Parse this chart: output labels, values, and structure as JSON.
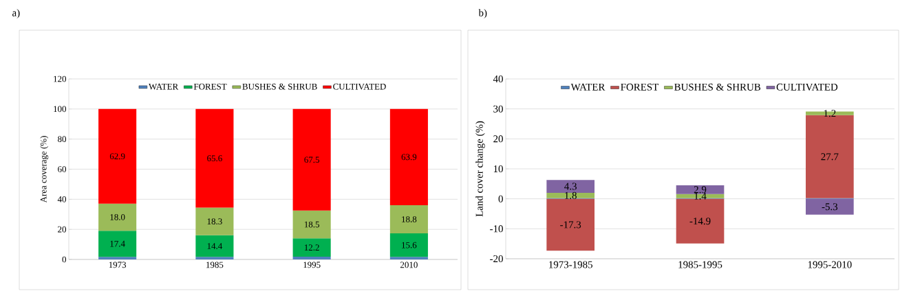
{
  "chart_data": [
    {
      "type": "bar",
      "stacked": true,
      "title": "a)",
      "ylabel": "Area coverage (%)",
      "categories": [
        "1973",
        "1985",
        "1995",
        "2010"
      ],
      "ylim": [
        0,
        120
      ],
      "yticks": [
        0,
        20,
        40,
        60,
        80,
        100,
        120
      ],
      "grid": "y",
      "legend": "top",
      "series": [
        {
          "name": "WATER",
          "color": "#4f81bd",
          "values": [
            1.7,
            1.7,
            1.8,
            1.7
          ],
          "value_labels": [
            null,
            null,
            null,
            null
          ]
        },
        {
          "name": "FOREST",
          "color": "#00b050",
          "values": [
            17.4,
            14.4,
            12.2,
            15.6
          ],
          "value_labels": [
            "17.4",
            "14.4",
            "12.2",
            "15.6"
          ]
        },
        {
          "name": "BUSHES & SHRUB",
          "color": "#9bbb59",
          "values": [
            18.0,
            18.3,
            18.5,
            18.8
          ],
          "value_labels": [
            "18.0",
            "18.3",
            "18.5",
            "18.8"
          ]
        },
        {
          "name": "CULTIVATED",
          "color": "#ff0000",
          "values": [
            62.9,
            65.6,
            67.5,
            63.9
          ],
          "value_labels": [
            "62.9",
            "65.6",
            "67.5",
            "63.9"
          ]
        }
      ]
    },
    {
      "type": "bar",
      "stacked": true,
      "title": "b)",
      "ylabel": "Land cover change (%)",
      "categories": [
        "1973-1985",
        "1985-1995",
        "1995-2010"
      ],
      "ylim": [
        -20,
        40
      ],
      "yticks": [
        -20,
        -10,
        0,
        10,
        20,
        30,
        40
      ],
      "grid": "y",
      "legend": "top",
      "series": [
        {
          "name": "WATER",
          "color": "#4f81bd",
          "values": [
            0.2,
            0.2,
            0.2
          ],
          "value_labels": [
            null,
            null,
            null
          ]
        },
        {
          "name": "FOREST",
          "color": "#c0504d",
          "values": [
            -17.3,
            -14.9,
            27.7
          ],
          "value_labels": [
            "-17.3",
            "-14.9",
            "27.7"
          ]
        },
        {
          "name": "BUSHES & SHRUB",
          "color": "#9bbb59",
          "values": [
            1.8,
            1.4,
            1.2
          ],
          "value_labels": [
            "1.8",
            "1.4",
            "1.2"
          ]
        },
        {
          "name": "CULTIVATED",
          "color": "#8064a2",
          "values": [
            4.3,
            2.9,
            -5.3
          ],
          "value_labels": [
            "4.3",
            "2.9",
            "-5.3"
          ]
        }
      ]
    }
  ]
}
